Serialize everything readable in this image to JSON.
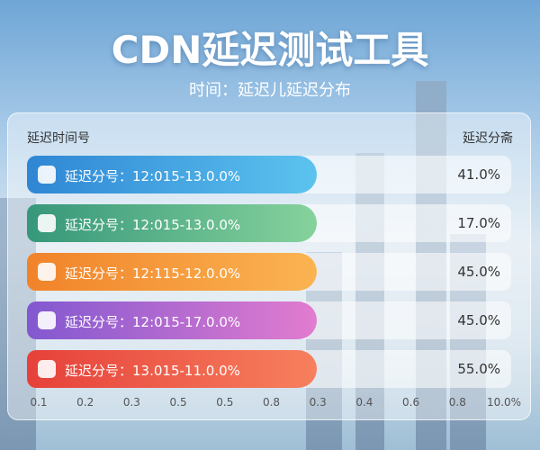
{
  "header": {
    "title": "CDN延迟测试工具",
    "subtitle": "时间：延迟儿延迟分布"
  },
  "table": {
    "columns": [
      "延迟时间号",
      "延迟分斋"
    ],
    "rows": [
      [
        "延迟分号：12:015-13.0.0%",
        "41.0%"
      ],
      [
        "延迟分号：12:015-13.0.0%",
        "17.0%"
      ],
      [
        "延迟分号：12:115-12.0.0%",
        "45.0%"
      ],
      [
        "延迟分号：12:015-17.0.0%",
        "45.0%"
      ],
      [
        "延迟分号：13.015-11.0.0%",
        "55.0%"
      ]
    ]
  },
  "axis_labels": [
    "0.1",
    "0.2",
    "0.3",
    "0.5",
    "0.5",
    "0.8",
    "0.3",
    "0.4",
    "0.6",
    "0.8",
    "10.0%"
  ]
}
